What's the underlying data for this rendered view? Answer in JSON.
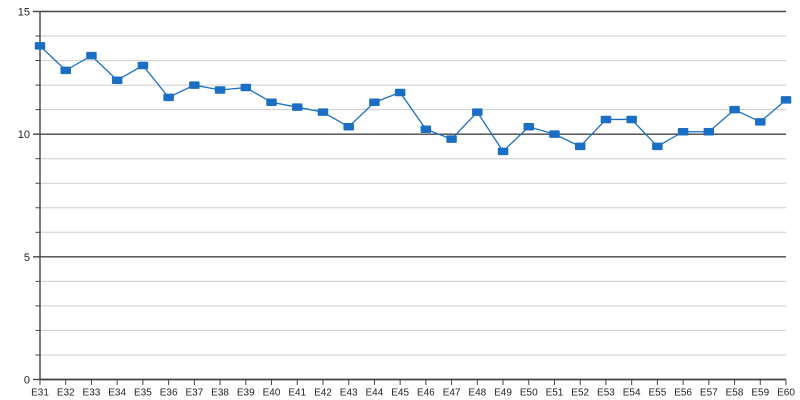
{
  "chart_data": {
    "type": "line",
    "title": "",
    "xlabel": "",
    "ylabel": "",
    "legend_position": "none",
    "background": "#ffffff",
    "categories": [
      "E31",
      "E32",
      "E33",
      "E34",
      "E35",
      "E36",
      "E37",
      "E38",
      "E39",
      "E40",
      "E41",
      "E42",
      "E43",
      "E44",
      "E45",
      "E46",
      "E47",
      "E48",
      "E49",
      "E50",
      "E51",
      "E52",
      "E53",
      "E54",
      "E55",
      "E56",
      "E57",
      "E58",
      "E59",
      "E60"
    ],
    "series": [
      {
        "name": "series-1",
        "color": "#1a6fc4",
        "marker": "square",
        "values": [
          13.6,
          12.6,
          13.2,
          12.2,
          12.8,
          11.5,
          12.0,
          11.8,
          11.9,
          11.3,
          11.1,
          10.9,
          10.3,
          11.3,
          11.7,
          10.2,
          9.8,
          10.9,
          9.3,
          10.3,
          10.0,
          9.5,
          10.6,
          10.6,
          9.5,
          10.1,
          10.1,
          11.0,
          10.5,
          11.4
        ]
      }
    ],
    "ylim": [
      0,
      15
    ],
    "y_major_ticks": [
      "0",
      "5",
      "10",
      "15"
    ],
    "y_major_step": 5,
    "y_minor_step": 1,
    "grid": {
      "major_color": "#444444",
      "minor_color": "#cbcbcb",
      "horizontal_only": true
    },
    "axis_color": "#444444"
  }
}
